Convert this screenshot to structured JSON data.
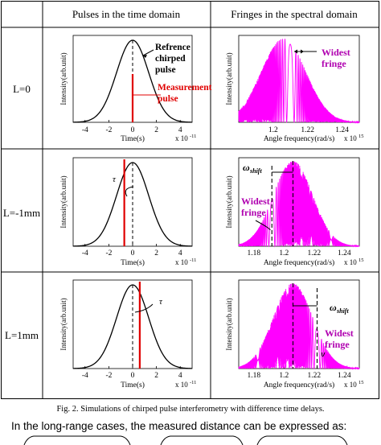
{
  "table": {
    "header_left": "Pulses in the time domain",
    "header_right": "Fringes in the spectral domain",
    "rows": [
      {
        "label": "L=0"
      },
      {
        "label": "L=-1mm"
      },
      {
        "label": "L=1mm"
      }
    ]
  },
  "time_panels": {
    "ylabel": "Intensity(arb.unit)",
    "xlabel": "Time(s)",
    "exponent": "x 10",
    "exponent_power": "-11",
    "xticks": [
      "-4",
      "-2",
      "0",
      "2",
      "4"
    ]
  },
  "spectral_panels": {
    "ylabel": "Intensity(arb.unit)",
    "xlabel": "Angle frequency(rad/s)",
    "exponent": "x 10",
    "exponent_power": "15",
    "xticks_row1": [
      "1.2",
      "1.22",
      "1.24"
    ],
    "xticks_row23": [
      "1.18",
      "1.2",
      "1.22",
      "1.24"
    ]
  },
  "annotations": {
    "ref_pulse": [
      "Refrence",
      "chirped",
      "pulse"
    ],
    "meas_pulse": [
      "Measurement",
      "pulse"
    ],
    "widest_fringe": [
      "Widest",
      "fringe"
    ],
    "tau": "τ",
    "omega": "ω",
    "omega_sub": "shift"
  },
  "chart_data": [
    {
      "type": "line",
      "panel": "time L=0",
      "x": [
        -5,
        5
      ],
      "reference": "gaussian centered 0",
      "measurement_position": 0
    },
    {
      "type": "line",
      "panel": "time L=-1mm",
      "reference": "gaussian centered 0",
      "measurement_position": -0.7
    },
    {
      "type": "line",
      "panel": "time L=1mm",
      "reference": "gaussian centered 0",
      "measurement_position": 0.6
    },
    {
      "type": "line",
      "panel": "spectral L=0",
      "xlim": [
        1.18,
        1.25
      ],
      "widest_fringe_at": 1.21
    },
    {
      "type": "line",
      "panel": "spectral L=-1mm",
      "xlim": [
        1.17,
        1.25
      ],
      "omega_shift": 1.192,
      "widest_fringe_at": 1.192
    },
    {
      "type": "line",
      "panel": "spectral L=1mm",
      "xlim": [
        1.17,
        1.25
      ],
      "omega_shift": 1.222,
      "widest_fringe_at": 1.222
    }
  ],
  "caption": "Fig. 2. Simulations of chirped pulse interferometry with difference time delays.",
  "body_text": "In the long-range cases, the measured distance can be expressed as:"
}
